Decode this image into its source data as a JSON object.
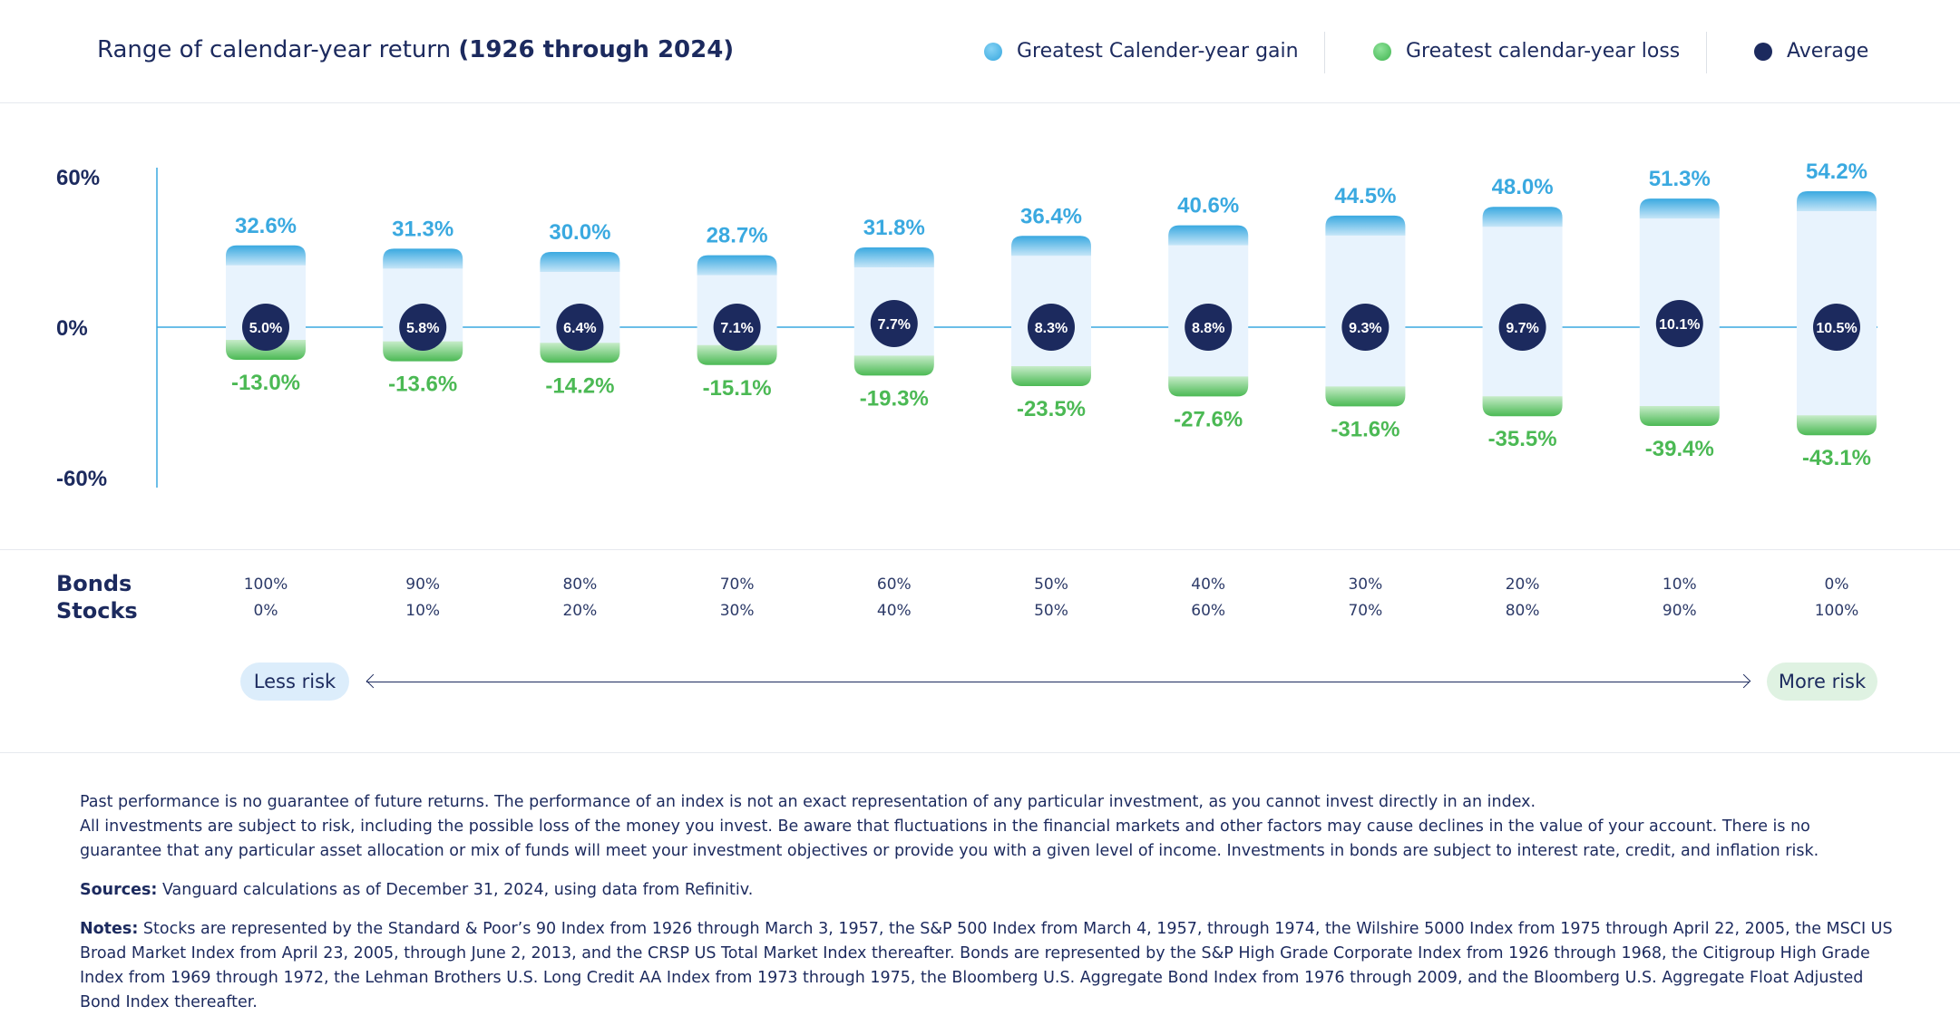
{
  "header": {
    "title_prefix": "Range of calendar-year return ",
    "title_bold": "(1926 through 2024)",
    "legend": {
      "gain": "Greatest Calender-year gain",
      "loss": "Greatest calendar-year loss",
      "average": "Average"
    }
  },
  "colors": {
    "gain": "#3aa9e0",
    "loss": "#4bb954",
    "average": "#1c2a5e",
    "range_fill": "#e8f3fd"
  },
  "chart_data": {
    "type": "bar",
    "title": "Range of calendar-year return (1926 through 2024)",
    "ylim": [
      -60,
      60
    ],
    "yticks": [
      "60%",
      "0%",
      "-60%"
    ],
    "categories": [
      "100% Bonds / 0% Stocks",
      "90% Bonds / 10% Stocks",
      "80% Bonds / 20% Stocks",
      "70% Bonds / 30% Stocks",
      "60% Bonds / 40% Stocks",
      "50% Bonds / 50% Stocks",
      "40% Bonds / 60% Stocks",
      "30% Bonds / 70% Stocks",
      "20% Bonds / 80% Stocks",
      "10% Bonds / 90% Stocks",
      "0% Bonds / 100% Stocks"
    ],
    "series": [
      {
        "name": "Greatest Calender-year gain",
        "values": [
          32.6,
          31.3,
          30.0,
          28.7,
          31.8,
          36.4,
          40.6,
          44.5,
          48.0,
          51.3,
          54.2
        ],
        "labels": [
          "32.6%",
          "31.3%",
          "30.0%",
          "28.7%",
          "31.8%",
          "36.4%",
          "40.6%",
          "44.5%",
          "48.0%",
          "51.3%",
          "54.2%"
        ]
      },
      {
        "name": "Greatest calendar-year loss",
        "values": [
          -13.0,
          -13.6,
          -14.2,
          -15.1,
          -19.3,
          -23.5,
          -27.6,
          -31.6,
          -35.5,
          -39.4,
          -43.1
        ],
        "labels": [
          "-13.0%",
          "-13.6%",
          "-14.2%",
          "-15.1%",
          "-19.3%",
          "-23.5%",
          "-27.6%",
          "-31.6%",
          "-35.5%",
          "-39.4%",
          "-43.1%"
        ]
      },
      {
        "name": "Average",
        "values": [
          5.0,
          5.8,
          6.4,
          7.1,
          7.7,
          8.3,
          8.8,
          9.3,
          9.7,
          10.1,
          10.5
        ],
        "labels": [
          "5.0%",
          "5.8%",
          "6.4%",
          "7.1%",
          "7.7%",
          "8.3%",
          "8.8%",
          "9.3%",
          "9.7%",
          "10.1%",
          "10.5%"
        ]
      }
    ]
  },
  "allocation": {
    "bonds_label": "Bonds",
    "stocks_label": "Stocks",
    "bonds": [
      "100%",
      "90%",
      "80%",
      "70%",
      "60%",
      "50%",
      "40%",
      "30%",
      "20%",
      "10%",
      "0%"
    ],
    "stocks": [
      "0%",
      "10%",
      "20%",
      "30%",
      "40%",
      "50%",
      "60%",
      "70%",
      "80%",
      "90%",
      "100%"
    ]
  },
  "risk": {
    "less": "Less risk",
    "more": "More risk"
  },
  "notes": {
    "disclaimer_1": "Past performance is no guarantee of future returns. The performance of an index is not an exact representation of any particular investment, as you cannot invest directly in an index.",
    "disclaimer_2": "All investments are subject to risk, including the possible loss of the money you invest. Be aware that fluctuations in the financial markets and other factors may cause declines in the value of your account. There is no guarantee that any particular asset allocation or mix of funds will meet your investment objectives or provide you with a given level of income. Investments in bonds are subject to interest rate, credit, and inflation risk.",
    "sources_label": "Sources:",
    "sources_text": " Vanguard calculations as of December 31, 2024, using data from Refinitiv.",
    "notes_label": "Notes:",
    "notes_text": " Stocks are represented by the Standard & Poor’s 90 Index from 1926 through March 3, 1957, the S&P 500 Index from March 4, 1957, through 1974, the Wilshire 5000 Index from 1975 through April 22, 2005, the MSCI US Broad Market Index from April 23, 2005, through June 2, 2013, and the CRSP US Total Market Index thereafter. Bonds are represented by the S&P High Grade Corporate Index from 1926 through 1968, the Citigroup High Grade Index from 1969 through 1972, the Lehman Brothers U.S. Long Credit AA Index from 1973 through 1975, the Bloomberg U.S. Aggregate Bond Index from 1976 through 2009, and the Bloomberg U.S. Aggregate Float Adjusted Bond Index thereafter."
  }
}
